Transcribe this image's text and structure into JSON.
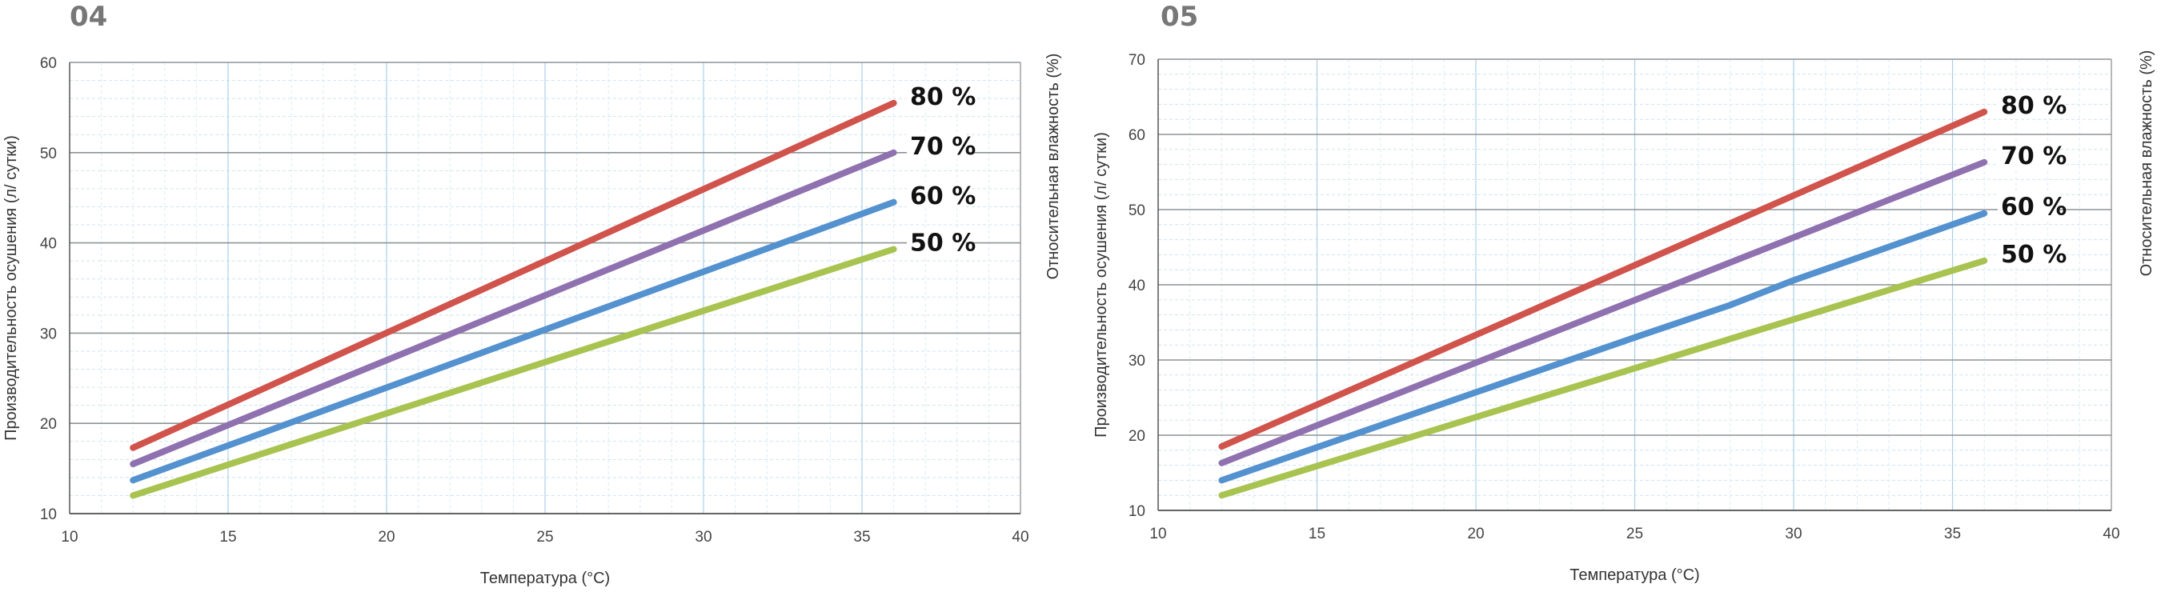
{
  "chart_data": [
    {
      "type": "line",
      "panel_label": "04",
      "xlabel": "Температура (°С)",
      "ylabel": "Производительность осушения (л/ сутки)",
      "ylabel_right": "Относительная влажность (%)",
      "xlim": [
        10,
        40
      ],
      "ylim": [
        10,
        60
      ],
      "xticks": [
        10,
        15,
        20,
        25,
        30,
        35,
        40
      ],
      "yticks": [
        10,
        20,
        30,
        40,
        50,
        60
      ],
      "grid": true,
      "legend": "right-end labels",
      "series": [
        {
          "name": "80 %",
          "color": "#d0534c",
          "x": [
            12,
            36
          ],
          "y": [
            17.3,
            55.5
          ]
        },
        {
          "name": "70 %",
          "color": "#8f71b0",
          "x": [
            12,
            36
          ],
          "y": [
            15.5,
            50.0
          ]
        },
        {
          "name": "60 %",
          "color": "#5391cf",
          "x": [
            12,
            36
          ],
          "y": [
            13.7,
            44.5
          ]
        },
        {
          "name": "50 %",
          "color": "#a8c34f",
          "x": [
            12,
            36
          ],
          "y": [
            12.0,
            39.3
          ]
        }
      ]
    },
    {
      "type": "line",
      "panel_label": "05",
      "xlabel": "Температура (°С)",
      "ylabel": "Производительность осушения (л/ сутки)",
      "ylabel_right": "Относительная влажность (%)",
      "xlim": [
        10,
        40
      ],
      "ylim": [
        10,
        70
      ],
      "xticks": [
        10,
        15,
        20,
        25,
        30,
        35,
        40
      ],
      "yticks": [
        10,
        20,
        30,
        40,
        50,
        60,
        70
      ],
      "grid": true,
      "legend": "right-end labels",
      "series": [
        {
          "name": "80 %",
          "color": "#d0534c",
          "x": [
            12,
            36
          ],
          "y": [
            18.5,
            63.0
          ]
        },
        {
          "name": "70 %",
          "color": "#8f71b0",
          "x": [
            12,
            36
          ],
          "y": [
            16.3,
            56.3
          ]
        },
        {
          "name": "60 %",
          "color": "#5391cf",
          "x": [
            12,
            20,
            25,
            28,
            30,
            36
          ],
          "y": [
            14.0,
            25.7,
            33.0,
            37.3,
            40.6,
            49.5
          ]
        },
        {
          "name": "50 %",
          "color": "#a8c34f",
          "x": [
            12,
            36
          ],
          "y": [
            12.0,
            43.2
          ]
        }
      ]
    }
  ]
}
